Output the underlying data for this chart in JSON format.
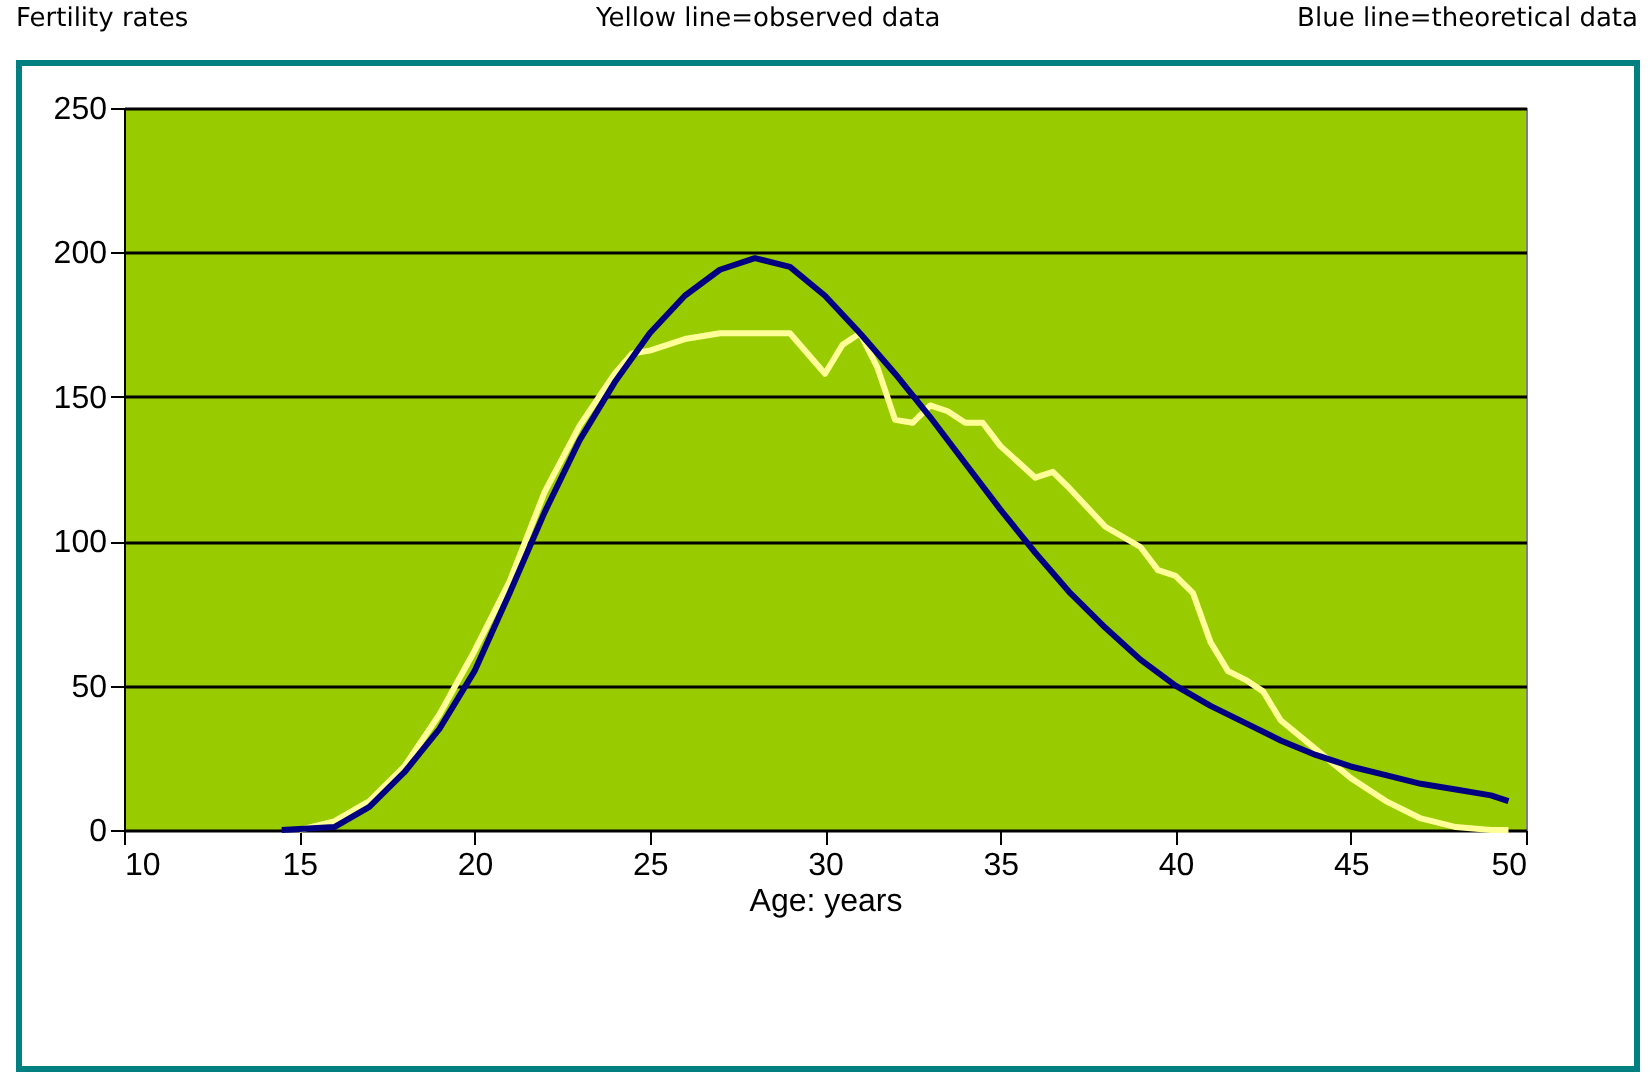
{
  "chart_data": {
    "type": "line",
    "title": "Fertility rates",
    "xlabel": "Age: years",
    "annotations": [
      "Yellow  line=observed data",
      "Blue line=theoretical data"
    ],
    "series": [
      {
        "color": "#ffff99",
        "x": [
          15,
          16,
          17,
          18,
          19,
          20,
          21,
          22,
          23,
          24,
          24.5,
          25,
          26,
          27,
          28,
          29,
          29.5,
          30,
          30.5,
          31,
          31.5,
          32,
          32.5,
          33,
          33.5,
          34,
          34.5,
          35,
          36,
          36.5,
          37,
          38,
          39,
          39.5,
          40,
          40.5,
          41,
          41.5,
          42,
          42.5,
          43,
          44,
          45,
          46,
          47,
          48,
          49,
          49.5
        ],
        "values": [
          0,
          3,
          10,
          22,
          40,
          62,
          86,
          117,
          140,
          158,
          165,
          166,
          170,
          172,
          172,
          172,
          165,
          158,
          168,
          172,
          160,
          142,
          141,
          147,
          145,
          141,
          141,
          133,
          122,
          124,
          118,
          105,
          98,
          90,
          88,
          82,
          65,
          55,
          52,
          48,
          38,
          28,
          18,
          10,
          4,
          1,
          0,
          0
        ]
      },
      {
        "color": "#000080",
        "x": [
          14.5,
          16,
          17,
          18,
          19,
          20,
          21,
          22,
          23,
          24,
          25,
          26,
          27,
          28,
          29,
          30,
          31,
          32,
          33,
          34,
          35,
          36,
          37,
          38,
          39,
          40,
          41,
          42,
          43,
          44,
          45,
          46,
          47,
          48,
          49,
          49.5
        ],
        "values": [
          0,
          1,
          8,
          20,
          35,
          55,
          82,
          110,
          135,
          155,
          172,
          185,
          194,
          198,
          195,
          185,
          172,
          158,
          143,
          127,
          111,
          96,
          82,
          70,
          59,
          50,
          43,
          37,
          31,
          26,
          22,
          19,
          16,
          14,
          12,
          10
        ]
      }
    ],
    "xlim": [
      10,
      50
    ],
    "xticks": [
      10,
      15,
      20,
      25,
      30,
      35,
      40,
      45,
      50
    ],
    "ylim": [
      0,
      250
    ],
    "yticks": [
      0,
      50,
      100,
      150,
      200,
      250
    ],
    "grid": "y",
    "marker": "none",
    "line_style": "solid",
    "legend": false
  }
}
